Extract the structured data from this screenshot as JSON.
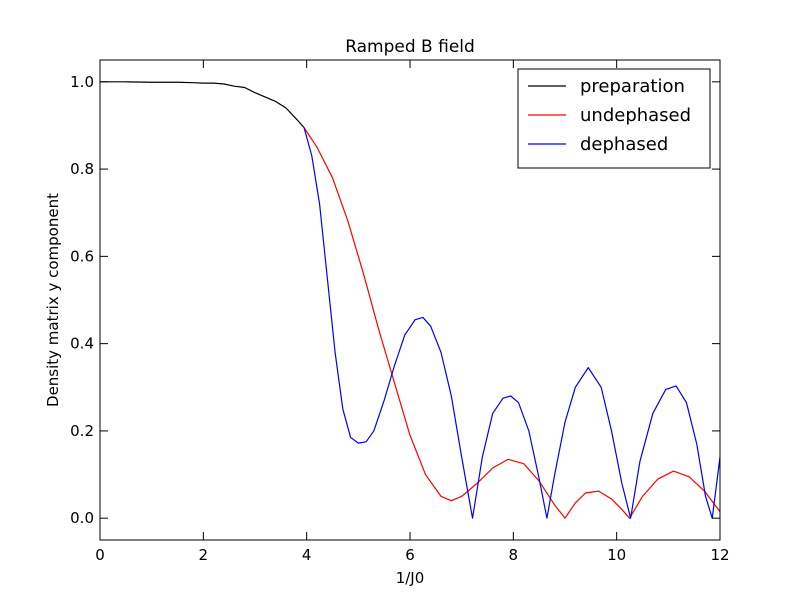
{
  "chart_data": {
    "type": "line",
    "title": "Ramped B field",
    "xlabel": "1/J0",
    "ylabel": "Density matrix y component",
    "xlim": [
      0,
      12
    ],
    "ylim": [
      -0.05,
      1.05
    ],
    "xticks": [
      0,
      2,
      4,
      6,
      8,
      10,
      12
    ],
    "xtick_labels": [
      "0",
      "2",
      "4",
      "6",
      "8",
      "10",
      "12"
    ],
    "yticks": [
      0.0,
      0.2,
      0.4,
      0.6,
      0.8,
      1.0
    ],
    "ytick_labels": [
      "0.0",
      "0.2",
      "0.4",
      "0.6",
      "0.8",
      "1.0"
    ],
    "grid": false,
    "legend_position": "top-right",
    "series": [
      {
        "name": "preparation",
        "color": "#000000",
        "x": [
          0,
          0.5,
          1.0,
          1.5,
          1.8,
          2.0,
          2.2,
          2.4,
          2.6,
          2.8,
          3.0,
          3.2,
          3.4,
          3.6,
          3.8,
          3.95
        ],
        "y": [
          1.0,
          1.0,
          0.999,
          0.999,
          0.998,
          0.997,
          0.997,
          0.995,
          0.99,
          0.987,
          0.975,
          0.965,
          0.955,
          0.94,
          0.915,
          0.895
        ]
      },
      {
        "name": "undephased",
        "color": "#ff0000",
        "x": [
          3.95,
          4.2,
          4.5,
          4.8,
          5.1,
          5.4,
          5.7,
          6.0,
          6.3,
          6.6,
          6.8,
          7.0,
          7.3,
          7.6,
          7.9,
          8.2,
          8.5,
          8.8,
          9.0,
          9.2,
          9.4,
          9.65,
          9.9,
          10.1,
          10.25,
          10.5,
          10.8,
          11.1,
          11.4,
          11.7,
          12.0
        ],
        "y": [
          0.895,
          0.85,
          0.78,
          0.68,
          0.56,
          0.43,
          0.31,
          0.19,
          0.1,
          0.05,
          0.04,
          0.05,
          0.08,
          0.115,
          0.135,
          0.125,
          0.085,
          0.03,
          0.0,
          0.035,
          0.058,
          0.062,
          0.044,
          0.02,
          0.0,
          0.05,
          0.09,
          0.108,
          0.095,
          0.062,
          0.015
        ]
      },
      {
        "name": "dephased",
        "color": "#0000ff",
        "x": [
          3.95,
          4.1,
          4.25,
          4.4,
          4.55,
          4.7,
          4.85,
          5.0,
          5.15,
          5.3,
          5.5,
          5.7,
          5.9,
          6.1,
          6.25,
          6.4,
          6.6,
          6.8,
          7.0,
          7.21,
          7.4,
          7.6,
          7.8,
          7.95,
          8.1,
          8.3,
          8.5,
          8.65,
          8.8,
          9.0,
          9.2,
          9.45,
          9.7,
          9.9,
          10.1,
          10.27,
          10.45,
          10.7,
          10.95,
          11.15,
          11.35,
          11.55,
          11.72,
          11.85,
          12.0
        ],
        "y": [
          0.895,
          0.83,
          0.72,
          0.55,
          0.38,
          0.25,
          0.185,
          0.172,
          0.175,
          0.2,
          0.27,
          0.35,
          0.42,
          0.455,
          0.46,
          0.44,
          0.38,
          0.28,
          0.14,
          0.0,
          0.14,
          0.24,
          0.275,
          0.28,
          0.265,
          0.2,
          0.09,
          0.0,
          0.1,
          0.22,
          0.3,
          0.345,
          0.3,
          0.2,
          0.08,
          0.0,
          0.13,
          0.24,
          0.295,
          0.303,
          0.265,
          0.17,
          0.05,
          0.0,
          0.14
        ]
      }
    ]
  }
}
